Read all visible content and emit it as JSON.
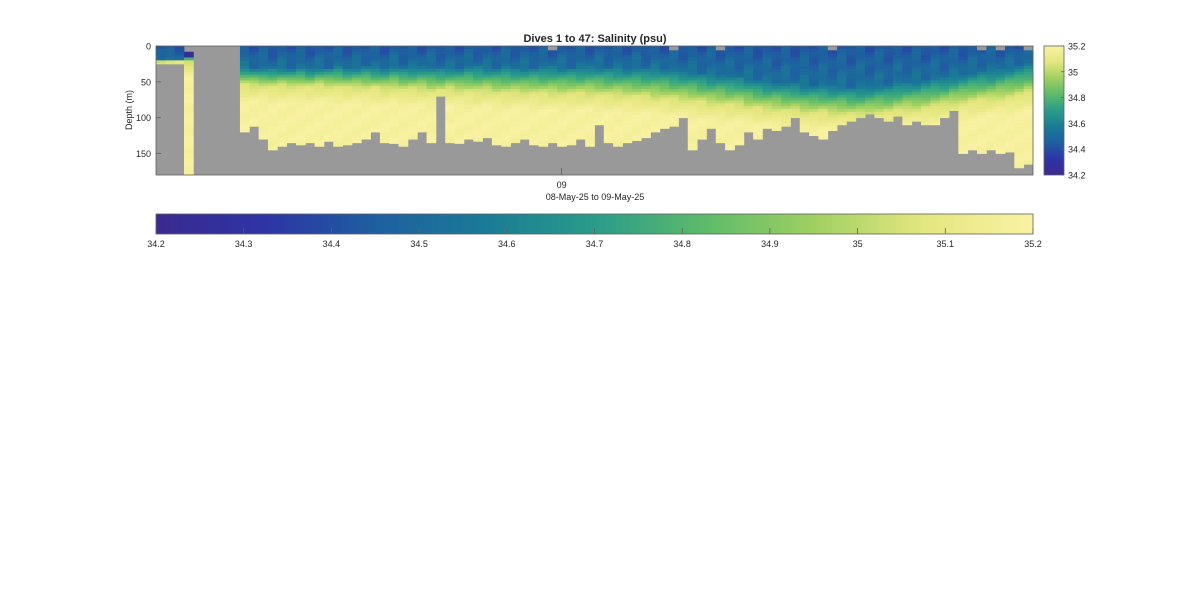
{
  "chart_data": {
    "type": "heatmap",
    "title": "Dives 1 to 47: Salinity (psu)",
    "ylabel": "Depth (m)",
    "xlabel": "08-May-25 to 09-May-25",
    "x_tick_labels": [
      "09"
    ],
    "y_ticks": [
      0,
      50,
      100,
      150
    ],
    "ylim": [
      180,
      0
    ],
    "y_reversed": true,
    "no_data_color": "#999999",
    "color_range": [
      34.2,
      35.2
    ],
    "colormap": [
      "#3b2a8f",
      "#2e34a6",
      "#1e5fa0",
      "#1a7b96",
      "#2a9c8a",
      "#5cba6a",
      "#9fd061",
      "#e4e67e",
      "#f9f2a4"
    ],
    "right_colorbar_ticks": [
      34.2,
      34.4,
      34.6,
      34.8,
      35,
      35.2
    ],
    "right_colorbar_tick_labels": [
      "34.2",
      "34.4",
      "34.6",
      "34.8",
      "35",
      "35.2"
    ],
    "bottom_colorbar_ticks": [
      34.2,
      34.3,
      34.4,
      34.5,
      34.6,
      34.7,
      34.8,
      34.9,
      35,
      35.1,
      35.2
    ],
    "bottom_colorbar_tick_labels": [
      "34.2",
      "34.3",
      "34.4",
      "34.5",
      "34.6",
      "34.7",
      "34.8",
      "34.9",
      "35",
      "35.1",
      "35.2"
    ],
    "profiles": {
      "count": 94,
      "max_depth_m": [
        25,
        25,
        25,
        180,
        180,
        180,
        180,
        180,
        180,
        120,
        112,
        130,
        145,
        140,
        135,
        138,
        135,
        140,
        133,
        140,
        138,
        135,
        130,
        120,
        135,
        136,
        140,
        130,
        120,
        135,
        70,
        135,
        136,
        130,
        133,
        128,
        138,
        140,
        135,
        130,
        138,
        140,
        135,
        140,
        138,
        130,
        140,
        110,
        135,
        140,
        135,
        132,
        128,
        120,
        115,
        112,
        100,
        145,
        130,
        115,
        135,
        145,
        138,
        120,
        130,
        115,
        118,
        112,
        100,
        120,
        125,
        130,
        118,
        110,
        105,
        100,
        95,
        100,
        105,
        98,
        110,
        105,
        110,
        110,
        100,
        90,
        150,
        145,
        150,
        145,
        150,
        148,
        170,
        165
      ],
      "surface_fresh_depth_m": [
        20,
        20,
        20,
        15,
        30,
        28,
        30,
        28,
        30,
        28,
        30,
        32,
        30,
        30,
        32,
        30,
        32,
        30,
        30,
        28,
        30,
        30,
        28,
        30,
        30,
        28,
        30,
        30,
        28,
        30,
        30,
        30,
        30,
        28,
        28,
        30,
        30,
        28,
        30,
        30,
        30,
        30,
        28,
        30,
        30,
        30,
        28,
        30,
        30,
        30,
        32,
        30,
        32,
        30,
        32,
        34,
        35,
        36,
        38,
        40,
        40,
        42,
        42,
        45,
        48,
        50,
        50,
        52,
        52,
        55,
        55,
        55,
        56,
        56,
        58,
        58,
        56,
        55,
        55,
        52,
        50,
        50,
        48,
        45,
        45,
        42,
        40,
        38,
        35,
        35,
        32,
        30,
        28,
        25
      ],
      "halocline_depth_m": [
        22,
        22,
        22,
        22,
        45,
        48,
        50,
        52,
        52,
        54,
        55,
        55,
        56,
        55,
        56,
        55,
        56,
        55,
        56,
        56,
        58,
        57,
        58,
        58,
        60,
        58,
        60,
        60,
        60,
        62,
        62,
        60,
        62,
        62,
        64,
        62,
        64,
        65,
        64,
        65,
        64,
        65,
        66,
        66,
        65,
        66,
        66,
        66,
        68,
        68,
        68,
        70,
        70,
        72,
        72,
        74,
        75,
        76,
        78,
        80,
        80,
        82,
        82,
        85,
        86,
        88,
        88,
        90,
        90,
        92,
        92,
        92,
        94,
        94,
        95,
        95,
        94,
        92,
        92,
        90,
        88,
        88,
        86,
        84,
        82,
        80,
        78,
        76,
        75,
        74,
        72,
        70,
        68,
        65
      ]
    }
  }
}
